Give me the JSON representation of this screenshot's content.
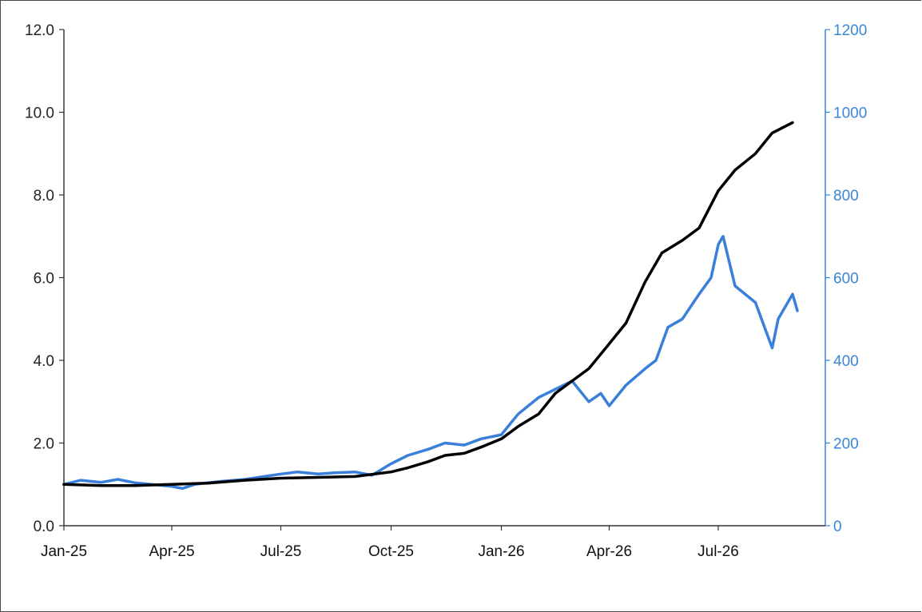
{
  "chart_data": {
    "type": "line",
    "title": "",
    "x_range": [
      "2025-01-01",
      "2026-10-01"
    ],
    "x_ticks": [
      {
        "date": "2025-01-01",
        "label": "Jan-25"
      },
      {
        "date": "2025-04-01",
        "label": "Apr-25"
      },
      {
        "date": "2025-07-01",
        "label": "Jul-25"
      },
      {
        "date": "2025-10-01",
        "label": "Oct-25"
      },
      {
        "date": "2026-01-01",
        "label": "Jan-26"
      },
      {
        "date": "2026-04-01",
        "label": "Apr-26"
      },
      {
        "date": "2026-07-01",
        "label": "Jul-26"
      }
    ],
    "y_left": {
      "range": [
        0,
        12
      ],
      "ticks": [
        0,
        2,
        4,
        6,
        8,
        10,
        12
      ],
      "tick_labels": [
        "0.0",
        "2.0",
        "4.0",
        "6.0",
        "8.0",
        "10.0",
        "12.0"
      ],
      "color": "#222222"
    },
    "y_right": {
      "range": [
        0,
        1200
      ],
      "ticks": [
        0,
        200,
        400,
        600,
        800,
        1000,
        1200
      ],
      "tick_labels": [
        "0",
        "200",
        "400",
        "600",
        "800",
        "1000",
        "1200"
      ],
      "color": "#3a86d6"
    },
    "grid": false,
    "legend": "none",
    "series": [
      {
        "axis": "left",
        "color": "#000000",
        "points": [
          [
            "2025-01-01",
            1.0
          ],
          [
            "2025-02-01",
            0.97
          ],
          [
            "2025-03-01",
            0.97
          ],
          [
            "2025-04-01",
            1.0
          ],
          [
            "2025-05-01",
            1.03
          ],
          [
            "2025-06-01",
            1.1
          ],
          [
            "2025-07-01",
            1.15
          ],
          [
            "2025-08-01",
            1.17
          ],
          [
            "2025-09-01",
            1.19
          ],
          [
            "2025-10-01",
            1.3
          ],
          [
            "2025-10-15",
            1.4
          ],
          [
            "2025-11-01",
            1.55
          ],
          [
            "2025-11-15",
            1.7
          ],
          [
            "2025-12-01",
            1.75
          ],
          [
            "2025-12-15",
            1.9
          ],
          [
            "2026-01-01",
            2.1
          ],
          [
            "2026-01-15",
            2.4
          ],
          [
            "2026-02-01",
            2.7
          ],
          [
            "2026-02-15",
            3.2
          ],
          [
            "2026-03-01",
            3.5
          ],
          [
            "2026-03-15",
            3.8
          ],
          [
            "2026-04-01",
            4.4
          ],
          [
            "2026-04-15",
            4.9
          ],
          [
            "2026-05-01",
            5.9
          ],
          [
            "2026-05-15",
            6.6
          ],
          [
            "2026-06-01",
            6.9
          ],
          [
            "2026-06-15",
            7.2
          ],
          [
            "2026-07-01",
            8.1
          ],
          [
            "2026-07-15",
            8.6
          ],
          [
            "2026-08-01",
            9.0
          ],
          [
            "2026-08-15",
            9.5
          ],
          [
            "2026-09-01",
            9.75
          ]
        ]
      },
      {
        "axis": "right",
        "color": "#3a7fd9",
        "points": [
          [
            "2025-01-01",
            100
          ],
          [
            "2025-01-15",
            110
          ],
          [
            "2025-02-01",
            105
          ],
          [
            "2025-02-15",
            112
          ],
          [
            "2025-03-01",
            104
          ],
          [
            "2025-03-15",
            100
          ],
          [
            "2025-04-01",
            95
          ],
          [
            "2025-04-10",
            90
          ],
          [
            "2025-04-20",
            100
          ],
          [
            "2025-05-01",
            104
          ],
          [
            "2025-05-15",
            108
          ],
          [
            "2025-06-01",
            112
          ],
          [
            "2025-06-15",
            118
          ],
          [
            "2025-07-01",
            125
          ],
          [
            "2025-07-15",
            130
          ],
          [
            "2025-08-01",
            125
          ],
          [
            "2025-08-15",
            128
          ],
          [
            "2025-09-01",
            130
          ],
          [
            "2025-09-15",
            122
          ],
          [
            "2025-10-01",
            150
          ],
          [
            "2025-10-15",
            170
          ],
          [
            "2025-11-01",
            185
          ],
          [
            "2025-11-15",
            200
          ],
          [
            "2025-12-01",
            195
          ],
          [
            "2025-12-15",
            210
          ],
          [
            "2026-01-01",
            220
          ],
          [
            "2026-01-15",
            270
          ],
          [
            "2026-02-01",
            310
          ],
          [
            "2026-02-15",
            330
          ],
          [
            "2026-03-01",
            350
          ],
          [
            "2026-03-15",
            300
          ],
          [
            "2026-03-25",
            320
          ],
          [
            "2026-04-01",
            290
          ],
          [
            "2026-04-15",
            340
          ],
          [
            "2026-05-01",
            380
          ],
          [
            "2026-05-10",
            400
          ],
          [
            "2026-05-20",
            480
          ],
          [
            "2026-06-01",
            500
          ],
          [
            "2026-06-15",
            560
          ],
          [
            "2026-06-25",
            600
          ],
          [
            "2026-07-01",
            680
          ],
          [
            "2026-07-05",
            700
          ],
          [
            "2026-07-15",
            580
          ],
          [
            "2026-08-01",
            540
          ],
          [
            "2026-08-15",
            430
          ],
          [
            "2026-08-20",
            500
          ],
          [
            "2026-09-01",
            560
          ],
          [
            "2026-09-05",
            520
          ]
        ]
      }
    ]
  }
}
